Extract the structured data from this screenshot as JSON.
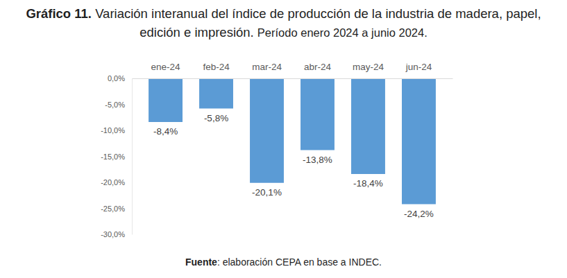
{
  "chart_data": {
    "type": "bar",
    "figure_label": "Gráfico 11.",
    "title": "Variación interanual del índice de producción de la industria de madera, papel, edición e impresión.",
    "subtitle": "Período enero 2024 a junio 2024.",
    "source_label": "Fuente",
    "source": ": elaboración CEPA en base a INDEC.",
    "categories": [
      "ene-24",
      "feb-24",
      "mar-24",
      "abr-24",
      "may-24",
      "jun-24"
    ],
    "values": [
      -8.4,
      -5.8,
      -20.1,
      -13.8,
      -18.4,
      -24.2
    ],
    "value_labels": [
      "-8,4%",
      "-5,8%",
      "-20,1%",
      "-13,8%",
      "-18,4%",
      "-24,2%"
    ],
    "color": "#5b9bd5",
    "ylim": [
      -30,
      0
    ],
    "yticks": [
      {
        "value": 0,
        "label": "0,0%"
      },
      {
        "value": -5,
        "label": "-5,0%"
      },
      {
        "value": -10,
        "label": "-10,0%"
      },
      {
        "value": -15,
        "label": "-15,0%"
      },
      {
        "value": -20,
        "label": "-20,0%"
      },
      {
        "value": -25,
        "label": "-25,0%"
      },
      {
        "value": -30,
        "label": "-30,0%"
      }
    ],
    "grid": false,
    "data_labels": true
  }
}
